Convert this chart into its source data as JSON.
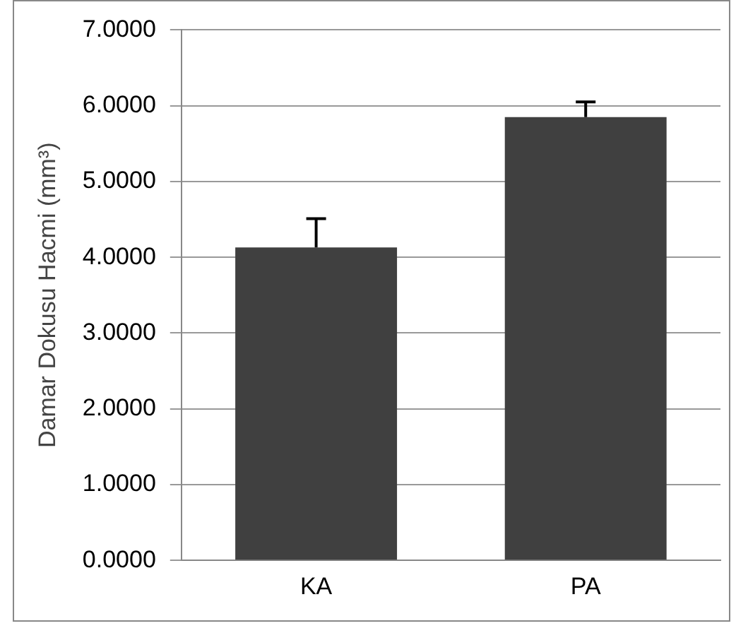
{
  "chart_data": {
    "type": "bar",
    "ylabel": "Damar Dokusu Hacmi (mm³)",
    "categories": [
      "KA",
      "PA"
    ],
    "values": [
      4.13,
      5.85
    ],
    "errors": [
      [
        4.13,
        4.51
      ],
      [
        5.85,
        6.05
      ]
    ],
    "color": "#404040",
    "ylim": [
      0,
      7
    ],
    "yticks": [
      {
        "value": 0,
        "label": "0.0000"
      },
      {
        "value": 1,
        "label": "1.0000"
      },
      {
        "value": 2,
        "label": "2.0000"
      },
      {
        "value": 3,
        "label": "3.0000"
      },
      {
        "value": 4,
        "label": "4.0000"
      },
      {
        "value": 5,
        "label": "5.0000"
      },
      {
        "value": 6,
        "label": "6.0000"
      },
      {
        "value": 7,
        "label": "7.0000"
      }
    ],
    "grid": "y",
    "legend": false
  }
}
